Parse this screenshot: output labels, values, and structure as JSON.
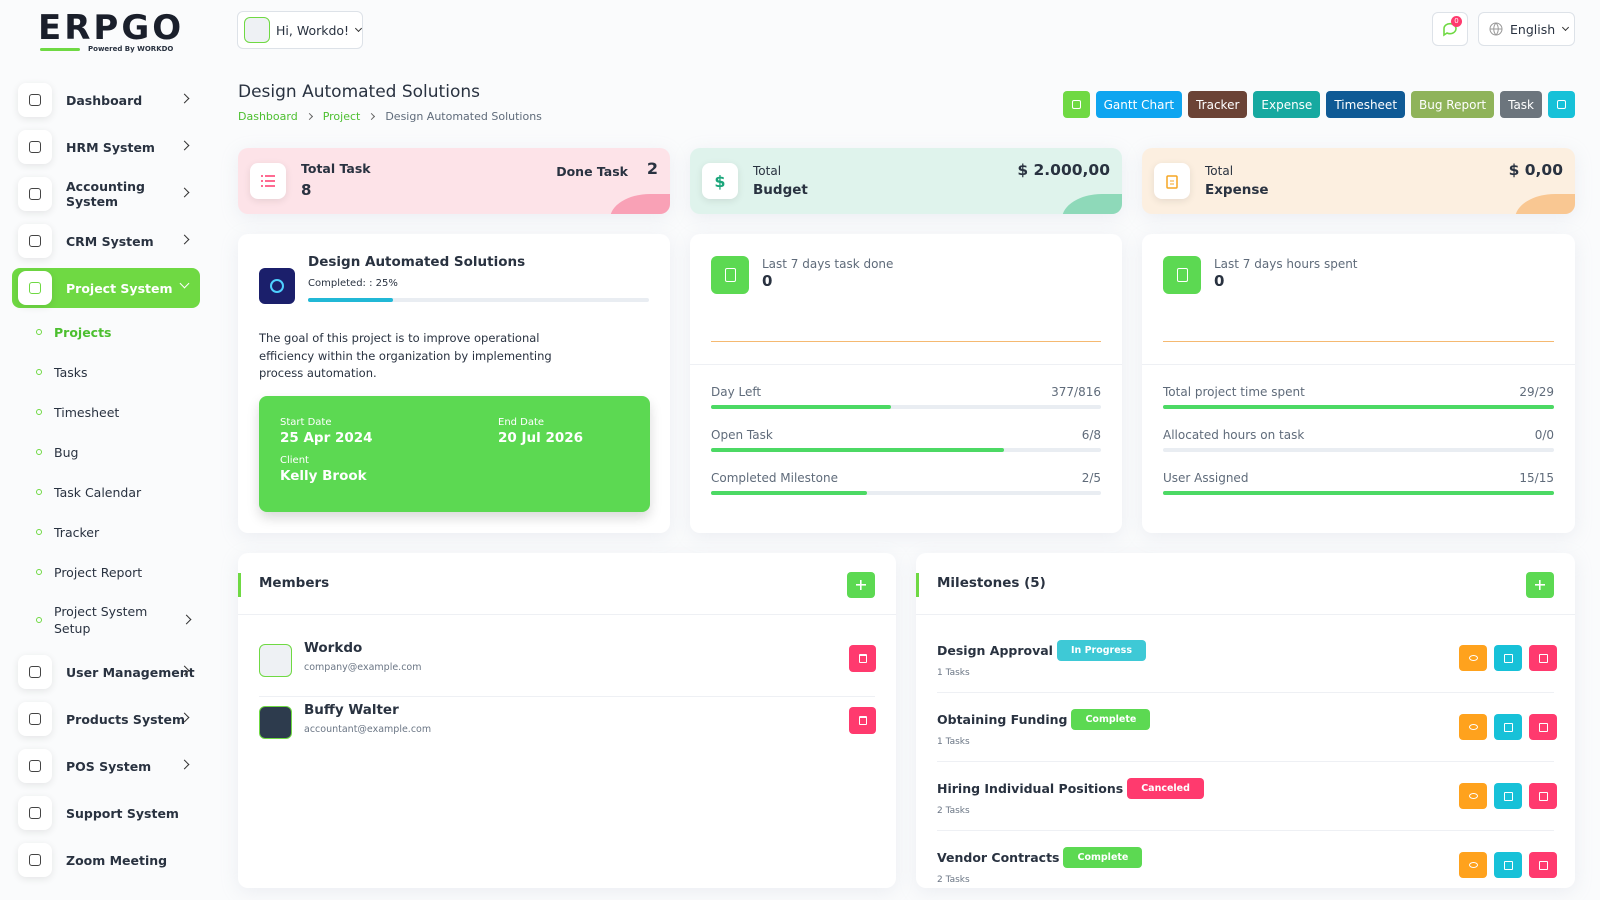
{
  "logo": {
    "brand": "ERPGO",
    "tagline": "Powered By WORKDO"
  },
  "sidebar": {
    "main_top": [
      "Dashboard",
      "HRM System",
      "Accounting System",
      "CRM System"
    ],
    "active": "Project System",
    "sub": [
      "Projects",
      "Tasks",
      "Timesheet",
      "Bug",
      "Task Calendar",
      "Tracker",
      "Project Report",
      "Project System Setup"
    ],
    "main_bottom": [
      "User Management",
      "Products System",
      "POS System",
      "Support System",
      "Zoom Meeting"
    ]
  },
  "header": {
    "greeting": "Hi, Workdo!",
    "notifications": "0",
    "language": "English"
  },
  "page": {
    "title": "Design Automated Solutions",
    "breadcrumb": [
      "Dashboard",
      "Project",
      "Design Automated Solutions"
    ],
    "actions": [
      "Gantt Chart",
      "Tracker",
      "Expense",
      "Timesheet",
      "Bug Report",
      "Task"
    ]
  },
  "stats": {
    "task": {
      "label": "Total Task",
      "value": "8",
      "done_label": "Done Task",
      "done_value": "2"
    },
    "budget": {
      "label": "Total",
      "sub": "Budget",
      "value": "$ 2.000,00"
    },
    "expense": {
      "label": "Total",
      "sub": "Expense",
      "value": "$ 0,00"
    }
  },
  "project": {
    "name": "Design Automated Solutions",
    "completed": "Completed: : 25%",
    "description": "The goal of this project is to improve operational efficiency within the organization by implementing process automation.",
    "start_label": "Start Date",
    "start": "25 Apr 2024",
    "end_label": "End Date",
    "end": "20 Jul 2026",
    "client_label": "Client",
    "client": "Kelly Brook"
  },
  "tasks_card": {
    "label": "Last 7 days task done",
    "value": "0",
    "rows": [
      {
        "label": "Day Left",
        "value": "377/816"
      },
      {
        "label": "Open Task",
        "value": "6/8"
      },
      {
        "label": "Completed Milestone",
        "value": "2/5"
      }
    ]
  },
  "hours_card": {
    "label": "Last 7 days hours spent",
    "value": "0",
    "rows": [
      {
        "label": "Total project time spent",
        "value": "29/29"
      },
      {
        "label": "Allocated hours on task",
        "value": "0/0"
      },
      {
        "label": "User Assigned",
        "value": "15/15"
      }
    ]
  },
  "members": {
    "title": "Members",
    "items": [
      {
        "name": "Workdo",
        "email": "company@example.com"
      },
      {
        "name": "Buffy Walter",
        "email": "accountant@example.com"
      }
    ]
  },
  "milestones": {
    "title": "Milestones (5)",
    "items": [
      {
        "name": "Design Approval",
        "status": "In Progress",
        "tasks": "1 Tasks"
      },
      {
        "name": "Obtaining Funding",
        "status": "Complete",
        "tasks": "1 Tasks"
      },
      {
        "name": "Hiring Individual Positions",
        "status": "Canceled",
        "tasks": "2 Tasks"
      },
      {
        "name": "Vendor Contracts",
        "status": "Complete",
        "tasks": "2 Tasks"
      }
    ]
  }
}
